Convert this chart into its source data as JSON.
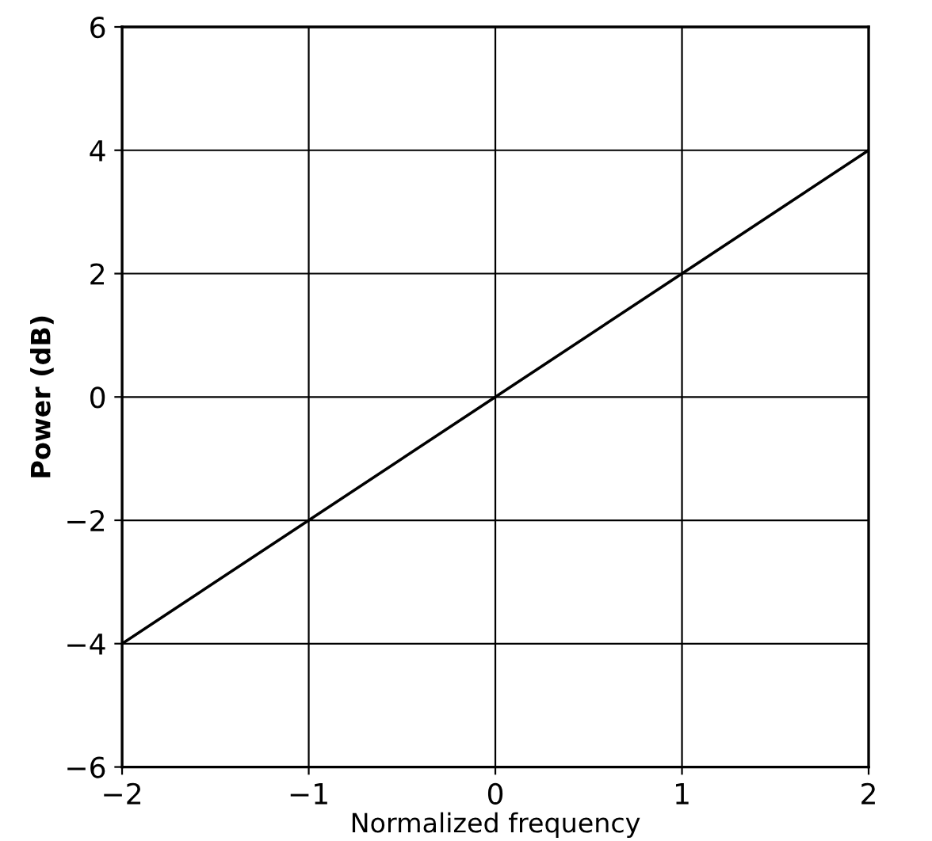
{
  "chart_data": {
    "type": "line",
    "xlabel": "Normalized frequency",
    "ylabel": "Power (dB)",
    "x": [
      -2,
      -1,
      0,
      1,
      2
    ],
    "series": [
      {
        "color": "#000000",
        "values": [
          -4,
          -2,
          0,
          2,
          4
        ]
      }
    ],
    "xlim": [
      -2,
      2
    ],
    "xticks": [
      {
        "value": -2,
        "label": "−2"
      },
      {
        "value": -1,
        "label": "−1"
      },
      0,
      1,
      2
    ],
    "ylim": [
      -6,
      6
    ],
    "yticks": [
      {
        "value": -6,
        "label": "−6"
      },
      {
        "value": -4,
        "label": "−4"
      },
      {
        "value": -2,
        "label": "−2"
      },
      0,
      2,
      4,
      6
    ],
    "grid": true,
    "marker": "none",
    "line_style": "solid",
    "legend": false
  }
}
